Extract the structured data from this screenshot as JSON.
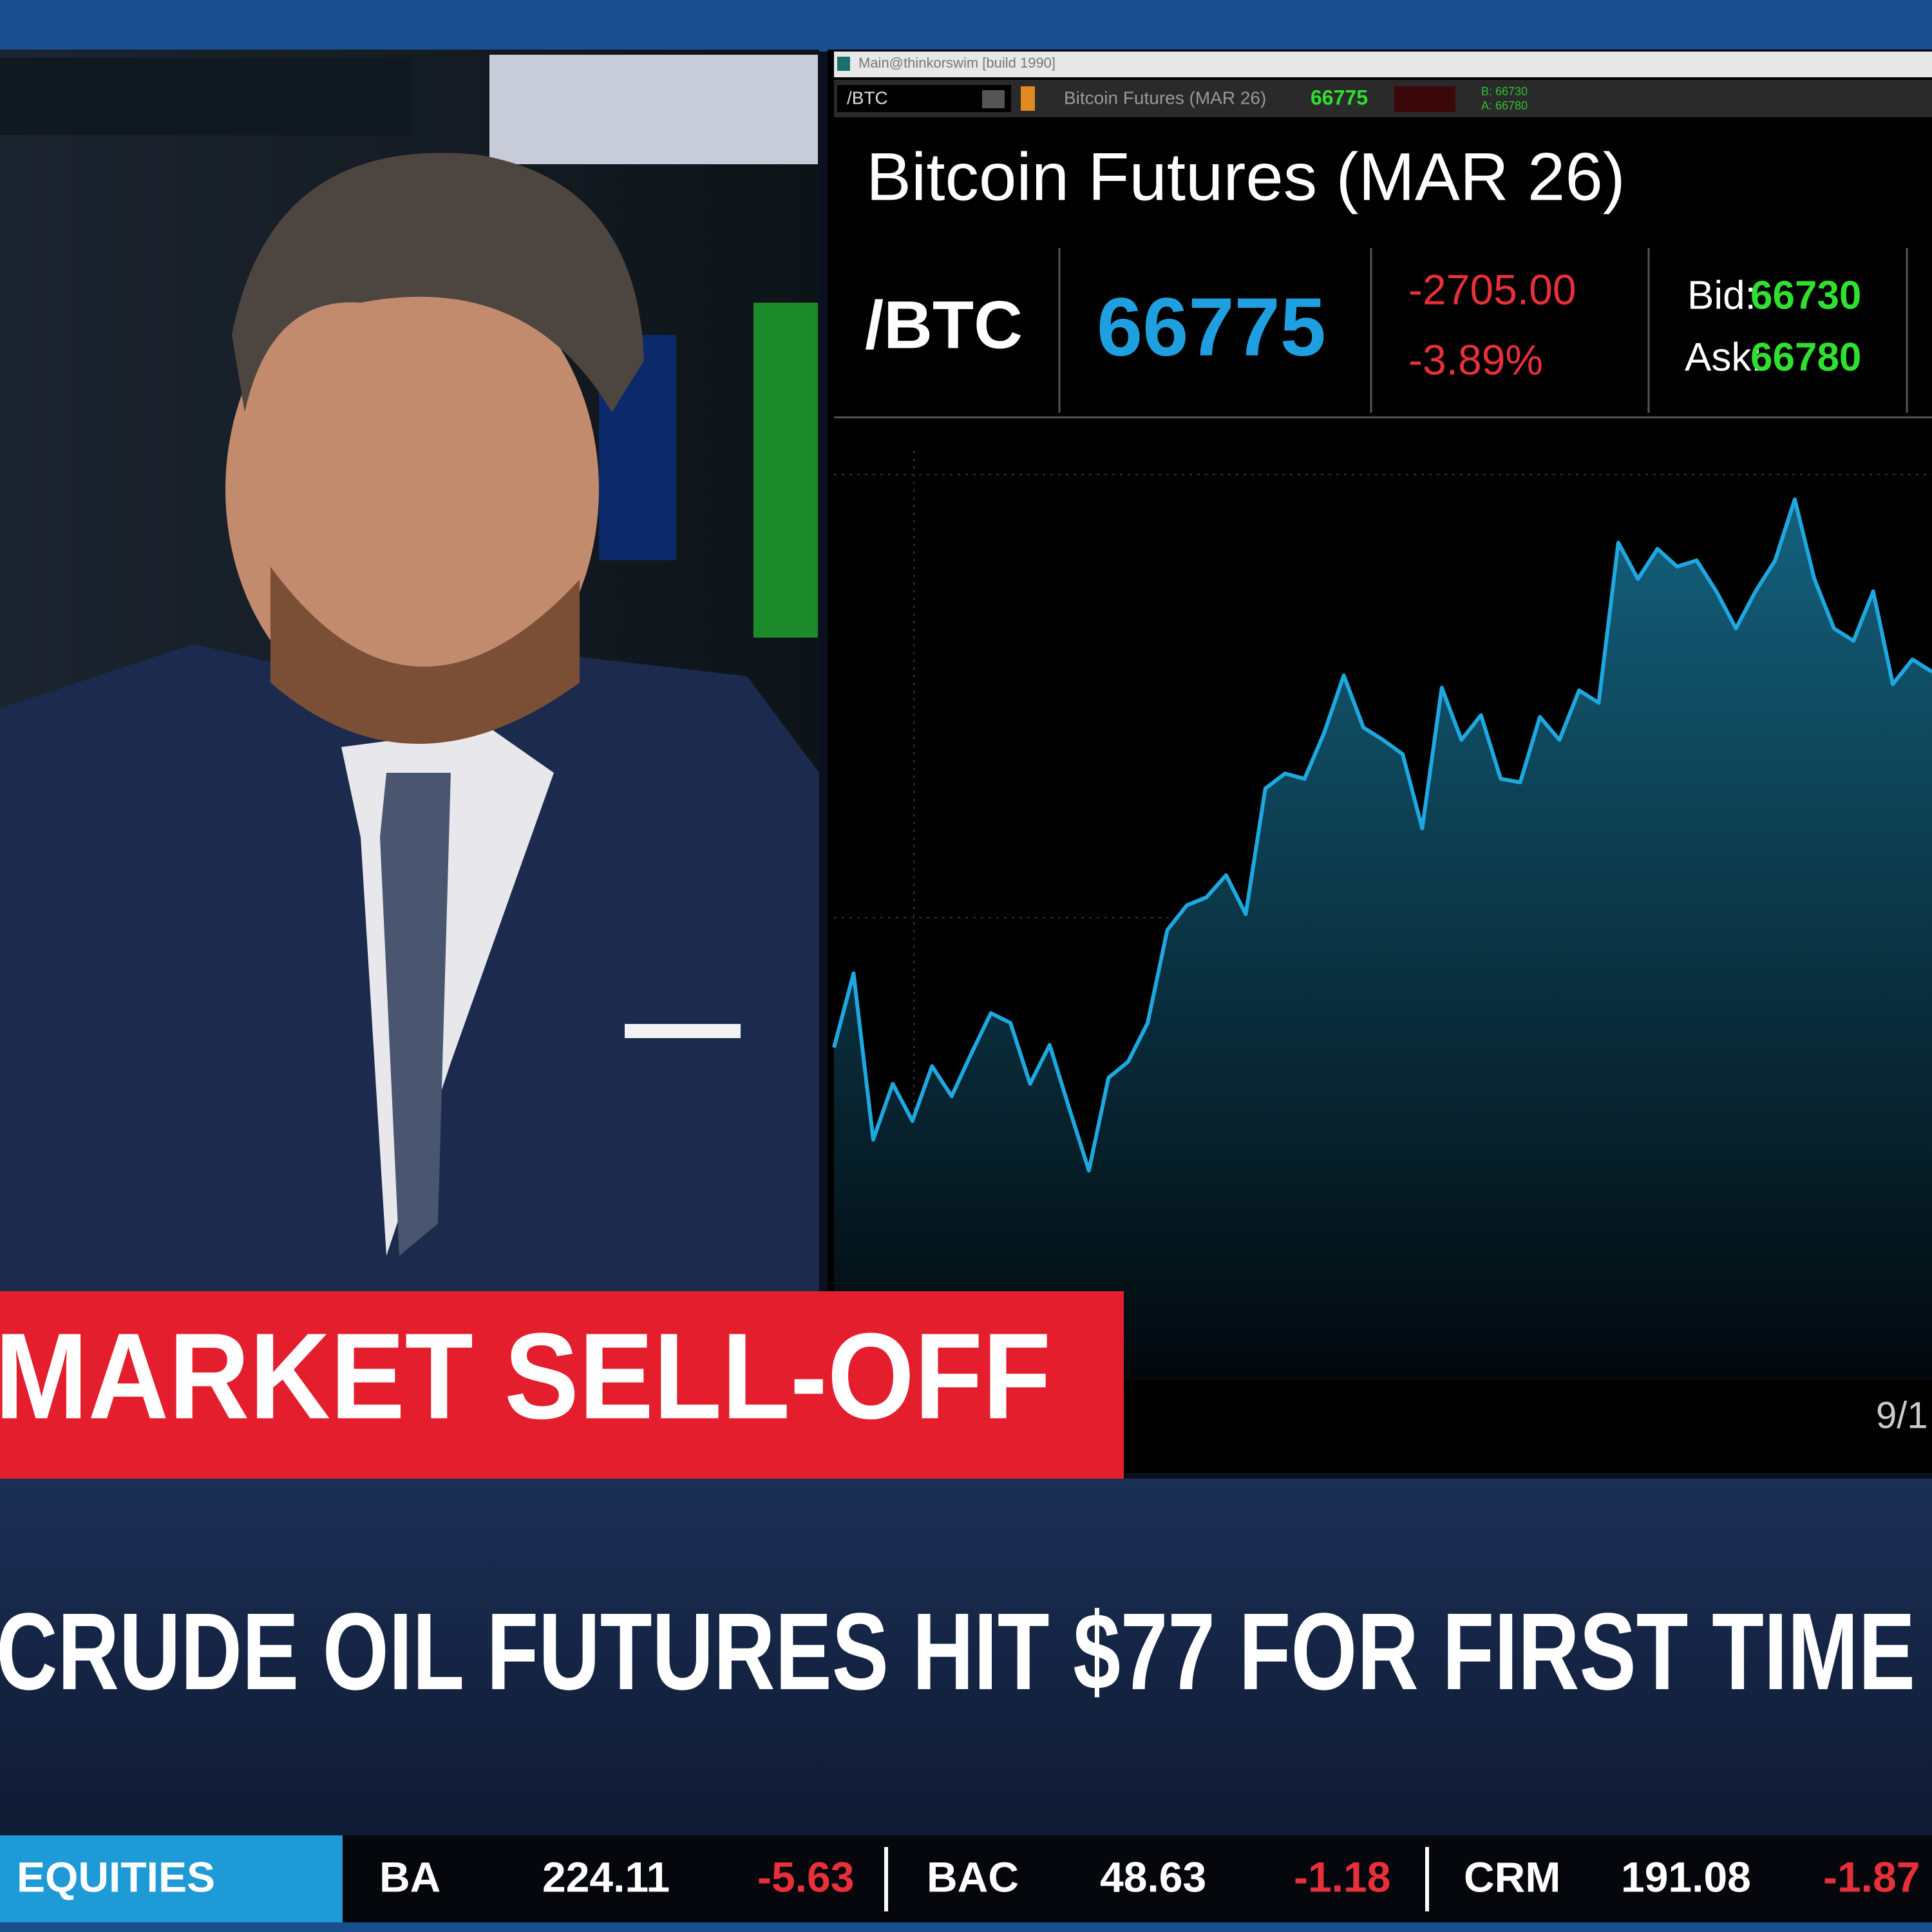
{
  "window": {
    "title": "Main@thinkorswim [build 1990]"
  },
  "toolbar": {
    "symbol": "/BTC",
    "description": "Bitcoin Futures (MAR 26)",
    "last": "66775",
    "bid": "B: 66730",
    "ask": "A: 66780"
  },
  "quote": {
    "title": "Bitcoin Futures (MAR 26)",
    "symbol": "/BTC",
    "last": "66775",
    "change": "-2705.00",
    "percent": "-3.89%",
    "bid_label": "Bid:",
    "bid": "66730",
    "ask_label": "Ask:",
    "ask": "66780"
  },
  "chart": {
    "type": "line",
    "date_label": "9/1",
    "ylim": [
      0,
      100
    ],
    "color": "#1ea8e0",
    "values": [
      35.2,
      43.6,
      24.8,
      31.1,
      26.9,
      33.1,
      29.7,
      34.5,
      39.1,
      38.0,
      31.1,
      35.5,
      28.3,
      21.3,
      31.8,
      33.6,
      38.0,
      48.5,
      51.3,
      52.2,
      54.7,
      50.3,
      64.5,
      66.2,
      65.6,
      70.8,
      77.3,
      71.4,
      70.0,
      68.4,
      60.0,
      75.9,
      70.0,
      72.8,
      65.6,
      65.2,
      72.6,
      70.0,
      75.6,
      74.2,
      92.3,
      88.2,
      91.6,
      89.6,
      90.3,
      86.8,
      82.6,
      86.8,
      90.3,
      97.2,
      88.2,
      82.6,
      81.2,
      86.8,
      76.3,
      79.1,
      77.7
    ]
  },
  "banner": "MARKET SELL-OFF",
  "headline": "CRUDE OIL FUTURES HIT $77 FOR FIRST TIME",
  "ticker": {
    "section": "EQUITIES",
    "items": [
      {
        "symbol": "BA",
        "price": "224.11",
        "change": "-5.63"
      },
      {
        "symbol": "BAC",
        "price": "48.63",
        "change": "-1.18"
      },
      {
        "symbol": "CRM",
        "price": "191.08",
        "change": "-1.87"
      }
    ]
  }
}
